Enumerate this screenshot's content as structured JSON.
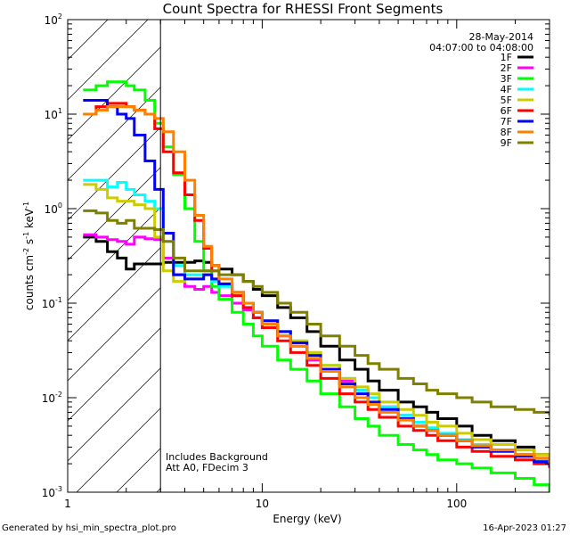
{
  "chart_data": {
    "type": "line",
    "title": "Count Spectra for RHESSI Front Segments",
    "xlabel": "Energy (keV)",
    "ylabel_parts": {
      "base": "counts cm",
      "exp1": "-2",
      "s": " s",
      "exp2": "-1",
      "kev": " keV",
      "exp3": "-1"
    },
    "xscale": "log",
    "yscale": "log",
    "xlim": [
      1,
      300
    ],
    "ylim": [
      0.001,
      100
    ],
    "x_ticks": [
      {
        "value": 1,
        "label": "1"
      },
      {
        "value": 10,
        "label": "10"
      },
      {
        "value": 100,
        "label": "100"
      }
    ],
    "y_ticks": [
      {
        "value": 0.001,
        "base": "10",
        "exp": "-3"
      },
      {
        "value": 0.01,
        "base": "10",
        "exp": "-2"
      },
      {
        "value": 0.1,
        "base": "10",
        "exp": "-1"
      },
      {
        "value": 1,
        "base": "10",
        "exp": "0"
      },
      {
        "value": 10,
        "base": "10",
        "exp": "1"
      },
      {
        "value": 100,
        "base": "10",
        "exp": "2"
      }
    ],
    "hatched_region": [
      1,
      3
    ],
    "date_text": "28-May-2014",
    "time_range_text": "04:07:00 to 04:08:00",
    "note_lines": [
      "Includes Background",
      "Att A0, FDecim 3"
    ],
    "legend_position": "top-right",
    "series": [
      {
        "name": "1F",
        "color": "#000000",
        "x": [
          1.2,
          1.4,
          1.6,
          1.8,
          2.0,
          2.2,
          2.5,
          2.8,
          3.1,
          3.5,
          4,
          4.5,
          5,
          5.5,
          6,
          7,
          8,
          9,
          10,
          12,
          14,
          17,
          20,
          25,
          30,
          35,
          40,
          50,
          60,
          70,
          80,
          100,
          120,
          150,
          200,
          250,
          300
        ],
        "y": [
          0.5,
          0.45,
          0.35,
          0.3,
          0.23,
          0.26,
          0.26,
          0.26,
          0.27,
          0.27,
          0.27,
          0.28,
          0.27,
          0.25,
          0.23,
          0.2,
          0.17,
          0.14,
          0.12,
          0.09,
          0.07,
          0.05,
          0.035,
          0.025,
          0.02,
          0.015,
          0.012,
          0.009,
          0.008,
          0.007,
          0.006,
          0.005,
          0.004,
          0.0035,
          0.003,
          0.0025,
          0.0022
        ]
      },
      {
        "name": "2F",
        "color": "#ff00ff",
        "x": [
          1.2,
          1.4,
          1.6,
          1.8,
          2.0,
          2.2,
          2.5,
          2.8,
          3.1,
          3.5,
          4,
          4.5,
          5,
          5.5,
          6,
          7,
          8,
          9,
          10,
          12,
          14,
          17,
          20,
          25,
          30,
          35,
          40,
          50,
          60,
          70,
          80,
          100,
          120,
          150,
          200,
          250,
          300
        ],
        "y": [
          0.53,
          0.5,
          0.47,
          0.45,
          0.42,
          0.5,
          0.48,
          0.47,
          0.3,
          0.2,
          0.15,
          0.14,
          0.15,
          0.13,
          0.12,
          0.1,
          0.085,
          0.07,
          0.06,
          0.045,
          0.035,
          0.025,
          0.02,
          0.015,
          0.012,
          0.01,
          0.008,
          0.0065,
          0.005,
          0.0045,
          0.004,
          0.0035,
          0.003,
          0.0028,
          0.0025,
          0.0022,
          0.002
        ]
      },
      {
        "name": "3F",
        "color": "#00ff00",
        "x": [
          1.2,
          1.4,
          1.6,
          1.8,
          2.0,
          2.2,
          2.5,
          2.8,
          3.1,
          3.5,
          4,
          4.5,
          5,
          5.5,
          6,
          7,
          8,
          9,
          10,
          12,
          14,
          17,
          20,
          25,
          30,
          35,
          40,
          50,
          60,
          70,
          80,
          100,
          120,
          150,
          200,
          250,
          300
        ],
        "y": [
          18,
          20,
          22,
          22,
          20,
          18,
          14,
          8,
          4.5,
          2.3,
          1.0,
          0.45,
          0.22,
          0.15,
          0.11,
          0.08,
          0.06,
          0.045,
          0.035,
          0.025,
          0.02,
          0.015,
          0.011,
          0.008,
          0.006,
          0.005,
          0.004,
          0.0032,
          0.0028,
          0.0025,
          0.0022,
          0.002,
          0.0018,
          0.0016,
          0.0014,
          0.0012,
          0.001
        ]
      },
      {
        "name": "4F",
        "color": "#00ffff",
        "x": [
          1.2,
          1.4,
          1.6,
          1.8,
          2.0,
          2.2,
          2.5,
          2.8,
          3.1,
          3.5,
          4,
          4.5,
          5,
          5.5,
          6,
          7,
          8,
          9,
          10,
          12,
          14,
          17,
          20,
          25,
          30,
          35,
          40,
          50,
          60,
          70,
          80,
          100,
          120,
          150,
          200,
          250,
          300
        ],
        "y": [
          2.0,
          2.0,
          1.7,
          1.9,
          1.6,
          1.4,
          1.2,
          1.0,
          0.45,
          0.25,
          0.2,
          0.2,
          0.2,
          0.17,
          0.15,
          0.12,
          0.1,
          0.08,
          0.065,
          0.05,
          0.04,
          0.03,
          0.022,
          0.016,
          0.012,
          0.01,
          0.008,
          0.0065,
          0.0055,
          0.0048,
          0.0042,
          0.0036,
          0.0032,
          0.0028,
          0.0025,
          0.0022,
          0.002
        ]
      },
      {
        "name": "5F",
        "color": "#cccc00",
        "x": [
          1.2,
          1.4,
          1.6,
          1.8,
          2.0,
          2.2,
          2.5,
          2.8,
          3.1,
          3.5,
          4,
          4.5,
          5,
          5.5,
          6,
          7,
          8,
          9,
          10,
          12,
          14,
          17,
          20,
          25,
          30,
          35,
          40,
          50,
          60,
          70,
          80,
          100,
          120,
          150,
          200,
          250,
          300
        ],
        "y": [
          1.8,
          1.6,
          1.3,
          1.2,
          1.2,
          1.1,
          1.0,
          0.5,
          0.22,
          0.17,
          0.18,
          0.18,
          0.2,
          0.18,
          0.16,
          0.13,
          0.1,
          0.08,
          0.065,
          0.05,
          0.04,
          0.03,
          0.022,
          0.016,
          0.013,
          0.011,
          0.009,
          0.0075,
          0.0065,
          0.0055,
          0.005,
          0.0042,
          0.0036,
          0.0032,
          0.0028,
          0.0025,
          0.0022
        ]
      },
      {
        "name": "6F",
        "color": "#ff0000",
        "x": [
          1.2,
          1.4,
          1.6,
          1.8,
          2.0,
          2.2,
          2.5,
          2.8,
          3.1,
          3.5,
          4,
          4.5,
          5,
          5.5,
          6,
          7,
          8,
          9,
          10,
          12,
          14,
          17,
          20,
          25,
          30,
          35,
          40,
          50,
          60,
          70,
          80,
          100,
          120,
          150,
          200,
          250,
          300
        ],
        "y": [
          10,
          12,
          13,
          13,
          12,
          11,
          10,
          7,
          4.0,
          2.4,
          1.4,
          0.75,
          0.38,
          0.22,
          0.16,
          0.12,
          0.09,
          0.07,
          0.055,
          0.04,
          0.03,
          0.022,
          0.016,
          0.011,
          0.009,
          0.0075,
          0.0062,
          0.005,
          0.0045,
          0.004,
          0.0035,
          0.003,
          0.0027,
          0.0024,
          0.0022,
          0.002,
          0.0018
        ]
      },
      {
        "name": "7F",
        "color": "#0000ff",
        "x": [
          1.2,
          1.4,
          1.6,
          1.8,
          2.0,
          2.2,
          2.5,
          2.8,
          3.1,
          3.5,
          4,
          4.5,
          5,
          5.5,
          6,
          7,
          8,
          9,
          10,
          12,
          14,
          17,
          20,
          25,
          30,
          35,
          40,
          50,
          60,
          70,
          80,
          100,
          120,
          150,
          200,
          250,
          300
        ],
        "y": [
          14,
          14,
          12,
          10,
          9,
          6,
          3.2,
          1.6,
          0.55,
          0.2,
          0.18,
          0.18,
          0.2,
          0.18,
          0.16,
          0.13,
          0.1,
          0.08,
          0.065,
          0.05,
          0.038,
          0.028,
          0.02,
          0.014,
          0.011,
          0.009,
          0.0075,
          0.006,
          0.005,
          0.0045,
          0.004,
          0.0035,
          0.003,
          0.0027,
          0.0024,
          0.0021,
          0.0019
        ]
      },
      {
        "name": "8F",
        "color": "#ff7f00",
        "x": [
          1.2,
          1.4,
          1.6,
          1.8,
          2.0,
          2.2,
          2.5,
          2.8,
          3.1,
          3.5,
          4,
          4.5,
          5,
          5.5,
          6,
          7,
          8,
          9,
          10,
          12,
          14,
          17,
          20,
          25,
          30,
          35,
          40,
          50,
          60,
          70,
          80,
          100,
          120,
          150,
          200,
          250,
          300
        ],
        "y": [
          10,
          11,
          12,
          12,
          12,
          11,
          10,
          9,
          6.5,
          4.0,
          2.0,
          0.85,
          0.4,
          0.25,
          0.18,
          0.13,
          0.1,
          0.08,
          0.06,
          0.045,
          0.035,
          0.026,
          0.019,
          0.013,
          0.01,
          0.0085,
          0.007,
          0.0058,
          0.005,
          0.0045,
          0.004,
          0.0035,
          0.0031,
          0.0028,
          0.0025,
          0.0023,
          0.002
        ]
      },
      {
        "name": "9F",
        "color": "#808000",
        "x": [
          1.2,
          1.4,
          1.6,
          1.8,
          2.0,
          2.2,
          2.5,
          2.8,
          3.1,
          3.5,
          4,
          4.5,
          5,
          5.5,
          6,
          7,
          8,
          9,
          10,
          12,
          14,
          17,
          20,
          25,
          30,
          35,
          40,
          50,
          60,
          70,
          80,
          100,
          120,
          150,
          200,
          250,
          300
        ],
        "y": [
          0.95,
          0.9,
          0.75,
          0.7,
          0.75,
          0.62,
          0.62,
          0.6,
          0.45,
          0.3,
          0.22,
          0.22,
          0.22,
          0.22,
          0.2,
          0.2,
          0.17,
          0.15,
          0.13,
          0.1,
          0.08,
          0.06,
          0.045,
          0.035,
          0.028,
          0.023,
          0.02,
          0.016,
          0.014,
          0.012,
          0.011,
          0.01,
          0.009,
          0.008,
          0.0075,
          0.007,
          0.0065
        ]
      }
    ]
  },
  "footer": {
    "generated_by": "Generated by hsi_min_spectra_plot.pro",
    "timestamp": "16-Apr-2023 01:27"
  }
}
